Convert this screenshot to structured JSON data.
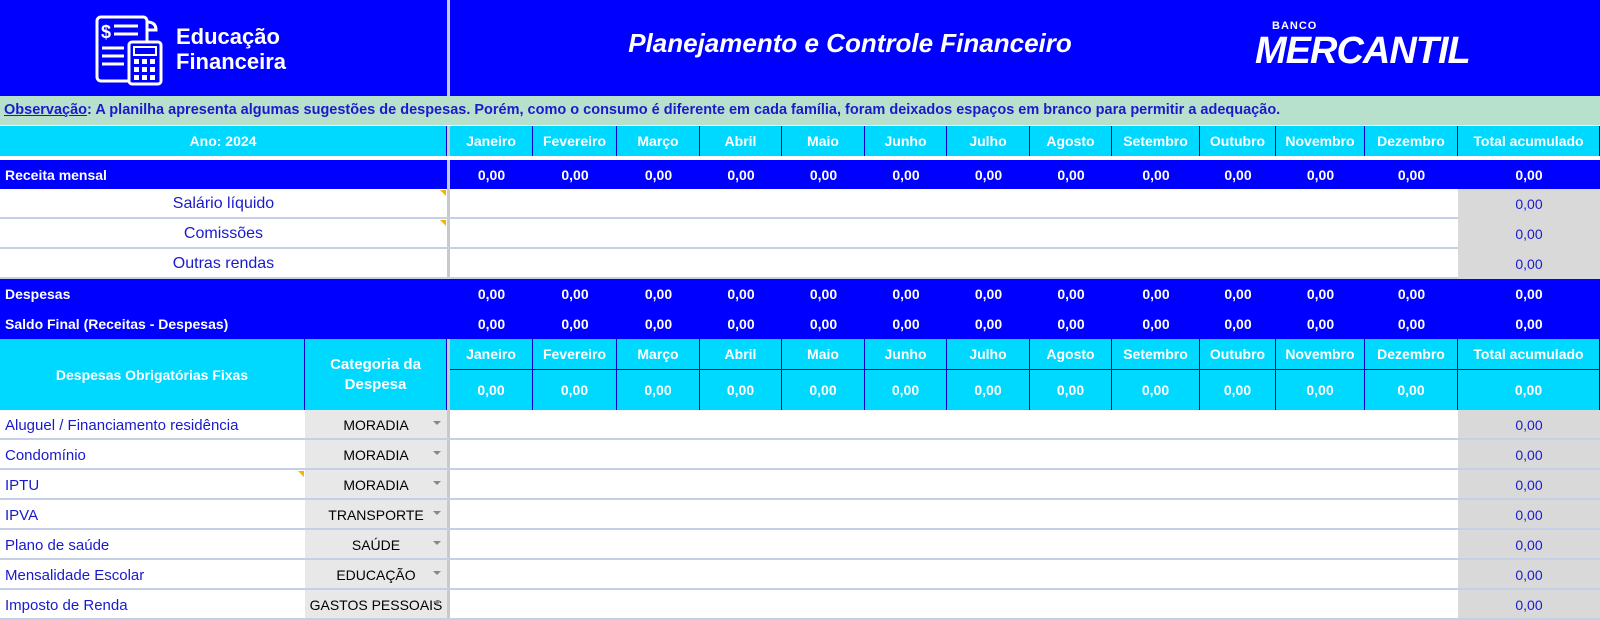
{
  "banner": {
    "logo_line1": "Educação",
    "logo_line2": "Financeira",
    "title": "Planejamento e Controle Financeiro",
    "bank_small": "BANCO",
    "bank_big": "MERCANTIL"
  },
  "note": {
    "label": "Observação",
    "text": ":  A planilha apresenta algumas sugestões de despesas. Porém, como o consumo é diferente em cada família, foram deixados espaços em branco para permitir a adequação."
  },
  "year_label": "Ano: 2024",
  "months": [
    "Janeiro",
    "Fevereiro",
    "Março",
    "Abril",
    "Maio",
    "Junho",
    "Julho",
    "Agosto",
    "Setembro",
    "Outubro",
    "Novembro",
    "Dezembro"
  ],
  "total_label": "Total acumulado",
  "summary_rows": [
    {
      "label": "Receita mensal",
      "values": [
        "0,00",
        "0,00",
        "0,00",
        "0,00",
        "0,00",
        "0,00",
        "0,00",
        "0,00",
        "0,00",
        "0,00",
        "0,00",
        "0,00"
      ],
      "total": "0,00"
    }
  ],
  "income_items": [
    {
      "label": "Salário líquido",
      "total": "0,00"
    },
    {
      "label": "Comissões",
      "total": "0,00"
    },
    {
      "label": "Outras rendas",
      "total": "0,00"
    }
  ],
  "summary_rows2": [
    {
      "label": "Despesas",
      "values": [
        "0,00",
        "0,00",
        "0,00",
        "0,00",
        "0,00",
        "0,00",
        "0,00",
        "0,00",
        "0,00",
        "0,00",
        "0,00",
        "0,00"
      ],
      "total": "0,00"
    },
    {
      "label": "Saldo Final (Receitas - Despesas)",
      "values": [
        "0,00",
        "0,00",
        "0,00",
        "0,00",
        "0,00",
        "0,00",
        "0,00",
        "0,00",
        "0,00",
        "0,00",
        "0,00",
        "0,00"
      ],
      "total": "0,00"
    }
  ],
  "fixed_section": {
    "title": "Despesas Obrigatórias Fixas",
    "category_header": "Categoria da Despesa",
    "totals": [
      "0,00",
      "0,00",
      "0,00",
      "0,00",
      "0,00",
      "0,00",
      "0,00",
      "0,00",
      "0,00",
      "0,00",
      "0,00",
      "0,00"
    ],
    "grand_total": "0,00",
    "items": [
      {
        "label": "Aluguel / Financiamento residência",
        "category": "MORADIA",
        "total": "0,00"
      },
      {
        "label": "Condomínio",
        "category": "MORADIA",
        "total": "0,00"
      },
      {
        "label": "IPTU",
        "category": "MORADIA",
        "total": "0,00"
      },
      {
        "label": "IPVA",
        "category": "TRANSPORTE",
        "total": "0,00"
      },
      {
        "label": "Plano de saúde",
        "category": "SAÚDE",
        "total": "0,00"
      },
      {
        "label": "Mensalidade Escolar",
        "category": "EDUCAÇÃO",
        "total": "0,00"
      },
      {
        "label": "Imposto de Renda",
        "category": "GASTOS PESSOAIS",
        "total": "0,00"
      }
    ]
  },
  "colors": {
    "banner": "#0000ff",
    "header": "#00d9ff",
    "note_bg": "#b7e1cd",
    "text_blue": "#1a1acd"
  }
}
